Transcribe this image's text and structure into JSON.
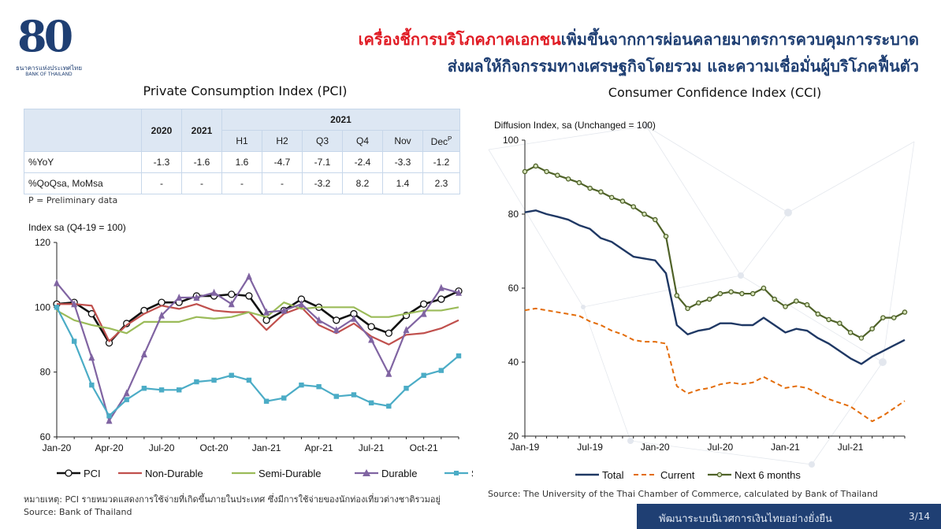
{
  "logo": {
    "number": "80",
    "org_th": "ธนาคารแห่งประเทศไทย",
    "org_en": "BANK OF THAILAND"
  },
  "headline": {
    "line1_red": "เครื่องชี้การบริโภคภาคเอกชน",
    "line1_blue": "เพิ่มขึ้นจากการผ่อนคลายมาตรการควบคุมการระบาด",
    "line2": "ส่งผลให้กิจกรรมทางเศรษฐกิจโดยรวม และความเชื่อมั่นผู้บริโภคฟื้นตัว"
  },
  "colors": {
    "navy": "#1f3f73",
    "red": "#e01b24",
    "pci": "#111111",
    "nondurable": "#c0504d",
    "semidurable": "#9bbb59",
    "durable": "#8064a2",
    "service": "#4bacc6",
    "cci_total": "#1f3864",
    "cci_current": "#e36c09",
    "cci_next": "#4f6228"
  },
  "table": {
    "year_header": "2021",
    "columns": [
      "2020",
      "2021",
      "H1",
      "H2",
      "Q3",
      "Q4",
      "Nov",
      "Dec"
    ],
    "dec_superscript": "P",
    "rows": [
      {
        "label": "%YoY",
        "cells": [
          "-1.3",
          "-1.6",
          "1.6",
          "-4.7",
          "-7.1",
          "-2.4",
          "-3.3",
          "-1.2"
        ]
      },
      {
        "label": "%QoQsa, MoMsa",
        "cells": [
          "-",
          "-",
          "-",
          "-",
          "-3.2",
          "8.2",
          "1.4",
          "2.3"
        ]
      }
    ],
    "note": "P = Preliminary data"
  },
  "chart_data": [
    {
      "type": "line",
      "title": "Private Consumption Index (PCI)",
      "ylabel": "Index sa (Q4-19 = 100)",
      "ylim": [
        60,
        120
      ],
      "yticks": [
        60,
        80,
        100,
        120
      ],
      "x": [
        "Jan-20",
        "Feb-20",
        "Mar-20",
        "Apr-20",
        "May-20",
        "Jun-20",
        "Jul-20",
        "Aug-20",
        "Sep-20",
        "Oct-20",
        "Nov-20",
        "Dec-20",
        "Jan-21",
        "Feb-21",
        "Mar-21",
        "Apr-21",
        "May-21",
        "Jun-21",
        "Jul-21",
        "Aug-21",
        "Sep-21",
        "Oct-21",
        "Nov-21",
        "Dec-21"
      ],
      "xticklabels": [
        "Jan-20",
        "Apr-20",
        "Jul-20",
        "Oct-20",
        "Jan-21",
        "Apr-21",
        "Jul-21",
        "Oct-21"
      ],
      "series": [
        {
          "name": "PCI",
          "marker": "circle",
          "values": [
            101,
            101.5,
            98,
            89,
            95,
            99,
            101.5,
            101.5,
            103.5,
            103.5,
            104,
            103.5,
            96,
            99,
            102.5,
            100,
            96,
            98,
            94,
            92,
            97.5,
            101,
            102.5,
            105
          ]
        },
        {
          "name": "Non-Durable",
          "marker": "none",
          "values": [
            101,
            101,
            100.5,
            89.5,
            94.5,
            98,
            100.5,
            99.5,
            101,
            99,
            98.5,
            98.5,
            93,
            98,
            100,
            94.5,
            92,
            95,
            91,
            88.5,
            91.5,
            92,
            93.5,
            96
          ]
        },
        {
          "name": "Semi-Durable",
          "marker": "none",
          "values": [
            99,
            96,
            94.5,
            93.5,
            92,
            95.5,
            95.5,
            95.5,
            97,
            96.5,
            97,
            98.5,
            97,
            101.5,
            99.5,
            100,
            100,
            100,
            97,
            97,
            98,
            99,
            99,
            100
          ]
        },
        {
          "name": "Durable",
          "marker": "triangle",
          "values": [
            107.5,
            101,
            84.5,
            65,
            73.5,
            85.5,
            97.5,
            103,
            103,
            104.5,
            101,
            109.5,
            98.5,
            99,
            101,
            96,
            93,
            96.5,
            90,
            79.5,
            93,
            98,
            106,
            104.5
          ]
        },
        {
          "name": "Service",
          "marker": "square",
          "values": [
            100,
            89.5,
            76,
            66.5,
            71.5,
            75,
            74.5,
            74.5,
            77,
            77.5,
            79,
            77.5,
            71,
            72,
            76,
            75.5,
            72.5,
            73,
            70.5,
            69.5,
            75,
            79,
            80.5,
            85
          ]
        }
      ],
      "legend": "bottom",
      "notes": [
        "หมายเหตุ: PCI รายหมวดแสดงการใช้จ่ายที่เกิดขึ้นภายในประเทศ ซึ่งมีการใช้จ่ายของนักท่องเที่ยวต่างชาติรวมอยู่",
        "Source: Bank of Thailand"
      ]
    },
    {
      "type": "line",
      "title": "Consumer Confidence Index (CCI)",
      "ylabel": "Diffusion Index, sa (Unchanged = 100)",
      "ylim": [
        20,
        100
      ],
      "yticks": [
        20,
        40,
        60,
        80,
        100
      ],
      "x": [
        "Jan-19",
        "Feb-19",
        "Mar-19",
        "Apr-19",
        "May-19",
        "Jun-19",
        "Jul-19",
        "Aug-19",
        "Sep-19",
        "Oct-19",
        "Nov-19",
        "Dec-19",
        "Jan-20",
        "Feb-20",
        "Mar-20",
        "Apr-20",
        "May-20",
        "Jun-20",
        "Jul-20",
        "Aug-20",
        "Sep-20",
        "Oct-20",
        "Nov-20",
        "Dec-20",
        "Jan-21",
        "Feb-21",
        "Mar-21",
        "Apr-21",
        "May-21",
        "Jun-21",
        "Jul-21",
        "Aug-21",
        "Sep-21",
        "Oct-21",
        "Nov-21",
        "Dec-21"
      ],
      "xticklabels": [
        "Jan-19",
        "Jul-19",
        "Jan-20",
        "Jul-20",
        "Jan-21",
        "Jul-21"
      ],
      "series": [
        {
          "name": "Total",
          "marker": "none",
          "values": [
            80.5,
            81,
            80,
            79.3,
            78.5,
            77,
            76,
            73.5,
            72.5,
            70.5,
            68.5,
            68,
            67.5,
            64,
            50,
            47.5,
            48.5,
            49,
            50.5,
            50.5,
            50,
            50,
            52,
            50,
            48,
            49,
            48.5,
            46.5,
            45,
            43,
            41,
            39.5,
            41.5,
            43,
            44.5,
            46
          ]
        },
        {
          "name": "Current",
          "marker": "none",
          "values": [
            54,
            54.5,
            54,
            53.5,
            53,
            52.5,
            51,
            50,
            48.5,
            47.5,
            46,
            45.5,
            45.5,
            45,
            33.5,
            31.5,
            32.5,
            33,
            34,
            34.5,
            34,
            34.5,
            36,
            34.5,
            33,
            33.5,
            33,
            31.5,
            30,
            29,
            28,
            26,
            24,
            25.5,
            27.5,
            29.5
          ]
        },
        {
          "name": "Next 6 months",
          "marker": "circle",
          "values": [
            91.5,
            93,
            91.5,
            90.5,
            89.5,
            88.5,
            87,
            86,
            84.5,
            83.5,
            82,
            80,
            78.5,
            74,
            58,
            54.5,
            56,
            57,
            58.5,
            59,
            58.5,
            58.5,
            60,
            57,
            55,
            56.5,
            55.5,
            53,
            51.5,
            50.5,
            48,
            46.5,
            49,
            52,
            52,
            53.5
          ]
        }
      ],
      "legend": "bottom",
      "source": "Source:  The University of the Thai Chamber of Commerce, calculated by Bank of Thailand"
    }
  ],
  "footer": {
    "tagline": "พัฒนาระบบนิเวศการเงินไทยอย่างยั่งยืน",
    "page": "3/14"
  }
}
